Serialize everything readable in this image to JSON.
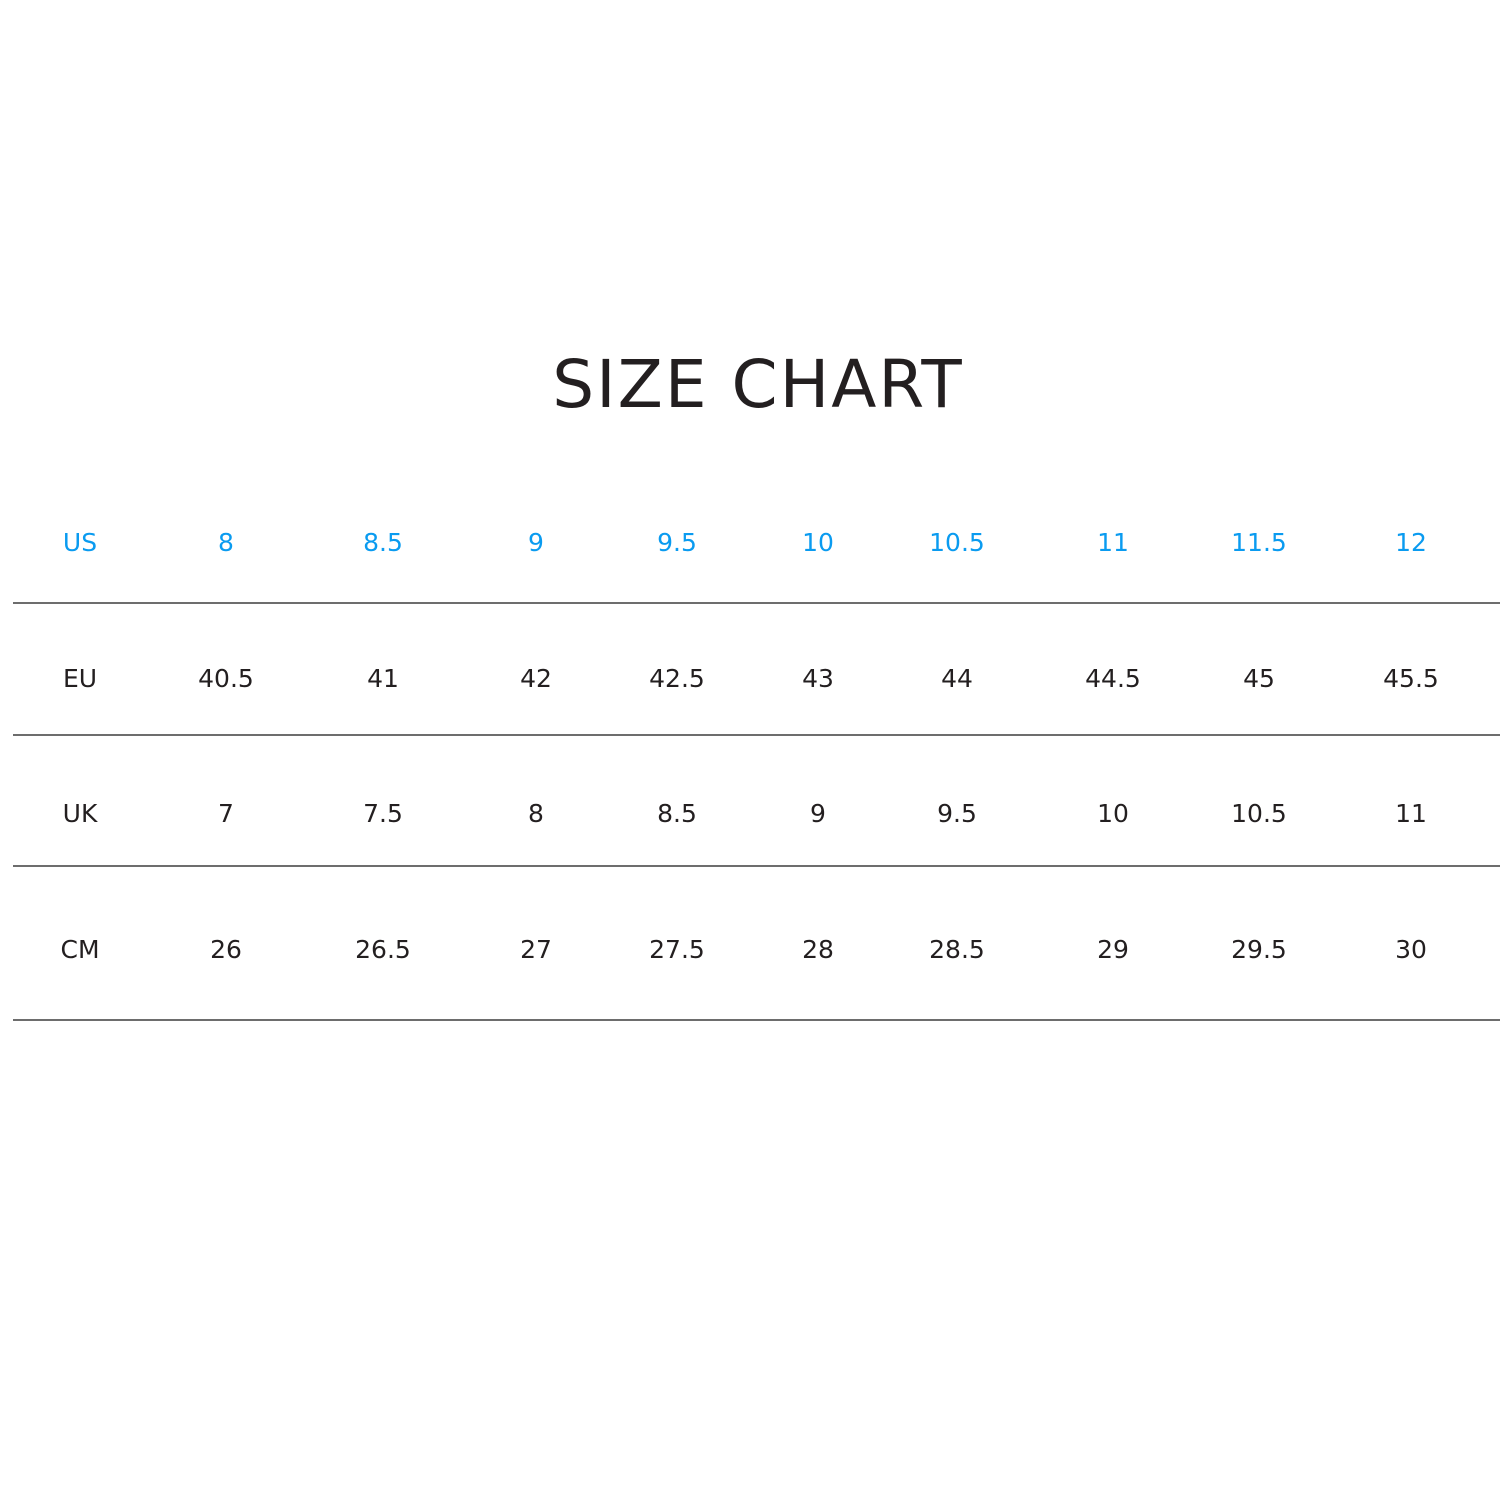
{
  "title": "SIZE CHART",
  "colors": {
    "accent": "#0a9bf0",
    "text": "#231f20",
    "rule": "#6d6d6d"
  },
  "rows": [
    {
      "label": "US",
      "values": [
        "8",
        "8.5",
        "9",
        "9.5",
        "10",
        "10.5",
        "11",
        "11.5",
        "12"
      ]
    },
    {
      "label": "EU",
      "values": [
        "40.5",
        "41",
        "42",
        "42.5",
        "43",
        "44",
        "44.5",
        "45",
        "45.5"
      ]
    },
    {
      "label": "UK",
      "values": [
        "7",
        "7.5",
        "8",
        "8.5",
        "9",
        "9.5",
        "10",
        "10.5",
        "11"
      ]
    },
    {
      "label": "CM",
      "values": [
        "26",
        "26.5",
        "27",
        "27.5",
        "28",
        "28.5",
        "29",
        "29.5",
        "30"
      ]
    }
  ]
}
